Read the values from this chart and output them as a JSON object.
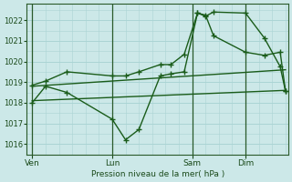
{
  "background_color": "#cce8e8",
  "grid_color": "#aad4d4",
  "line_color": "#1a5c1a",
  "xlabel": "Pression niveau de la mer( hPa )",
  "ylim": [
    1015.5,
    1022.8
  ],
  "yticks": [
    1016,
    1017,
    1018,
    1019,
    1020,
    1021,
    1022
  ],
  "xtick_labels": [
    "Ven",
    "Lun",
    "Sam",
    "Dim"
  ],
  "xtick_positions": [
    0,
    30,
    60,
    80
  ],
  "xlim": [
    -2,
    96
  ],
  "vline_positions": [
    0,
    30,
    60,
    80
  ],
  "trend1_x": [
    0,
    95
  ],
  "trend1_y": [
    1018.1,
    1018.6
  ],
  "trend2_x": [
    0,
    95
  ],
  "trend2_y": [
    1018.8,
    1019.6
  ],
  "zigzag1_x": [
    0,
    5,
    13,
    30,
    35,
    40,
    48,
    52,
    57,
    62,
    65,
    68,
    80,
    87,
    93,
    95
  ],
  "zigzag1_y": [
    1018.0,
    1018.8,
    1018.5,
    1017.2,
    1016.2,
    1016.7,
    1019.3,
    1019.4,
    1019.5,
    1022.35,
    1022.2,
    1022.4,
    1022.35,
    1021.15,
    1019.75,
    1018.55
  ],
  "zigzag2_x": [
    0,
    5,
    13,
    30,
    35,
    40,
    48,
    52,
    57,
    62,
    65,
    68,
    80,
    87,
    93,
    95
  ],
  "zigzag2_y": [
    1018.85,
    1019.05,
    1019.5,
    1019.3,
    1019.3,
    1019.5,
    1019.85,
    1019.85,
    1020.35,
    1022.35,
    1022.25,
    1021.25,
    1020.45,
    1020.3,
    1020.45,
    1018.55
  ]
}
